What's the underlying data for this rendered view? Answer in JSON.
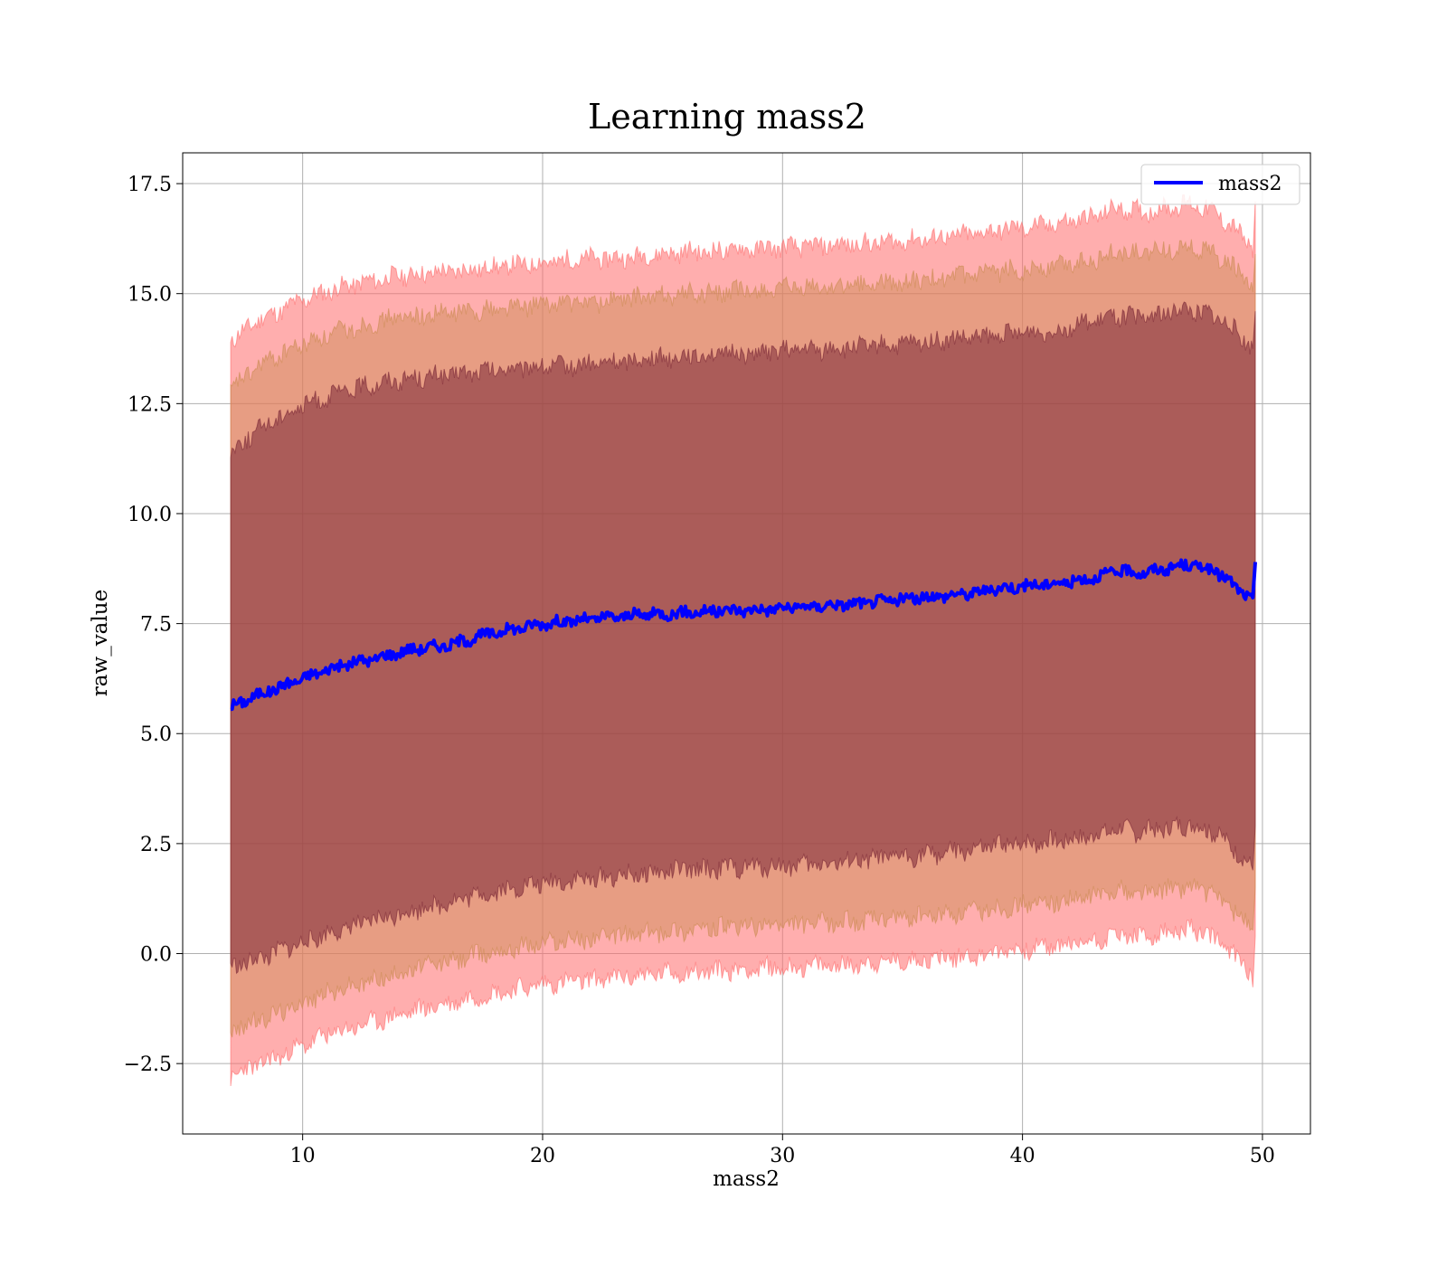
{
  "chart_data": {
    "type": "line",
    "title": "Learning mass2",
    "xlabel": "mass2",
    "ylabel": "raw_value",
    "xlim": [
      5,
      52
    ],
    "ylim": [
      -4.1,
      18.2
    ],
    "xticks": [
      10,
      20,
      30,
      40,
      50
    ],
    "xtick_labels": [
      "10",
      "20",
      "30",
      "40",
      "50"
    ],
    "yticks": [
      -2.5,
      0.0,
      2.5,
      5.0,
      7.5,
      10.0,
      12.5,
      15.0,
      17.5
    ],
    "ytick_labels": [
      "−2.5",
      "0.0",
      "2.5",
      "5.0",
      "7.5",
      "10.0",
      "12.5",
      "15.0",
      "17.5"
    ],
    "grid": true,
    "legend": {
      "position": "top-right",
      "entries": [
        {
          "label": "mass2",
          "color": "#0000ff"
        }
      ]
    },
    "x": [
      7.0,
      8.0,
      9.0,
      10.0,
      11.0,
      12.0,
      13.0,
      14.0,
      15.0,
      16.0,
      17.0,
      18.0,
      19.0,
      20.0,
      21.0,
      22.0,
      23.0,
      24.0,
      25.0,
      26.0,
      27.0,
      28.0,
      29.0,
      30.0,
      31.0,
      32.0,
      33.0,
      34.0,
      35.0,
      36.0,
      37.0,
      38.0,
      39.0,
      40.0,
      41.0,
      42.0,
      43.0,
      44.0,
      45.0,
      46.0,
      47.0,
      48.0,
      49.0,
      49.6,
      49.7
    ],
    "series": [
      {
        "name": "mass2",
        "color": "#0000ff",
        "values": [
          5.6,
          5.85,
          6.05,
          6.25,
          6.45,
          6.6,
          6.7,
          6.85,
          6.95,
          7.0,
          7.15,
          7.3,
          7.4,
          7.5,
          7.55,
          7.6,
          7.65,
          7.7,
          7.72,
          7.75,
          7.78,
          7.8,
          7.82,
          7.85,
          7.88,
          7.92,
          7.95,
          8.0,
          8.05,
          8.1,
          8.15,
          8.2,
          8.3,
          8.35,
          8.4,
          8.45,
          8.55,
          8.7,
          8.65,
          8.75,
          8.85,
          8.7,
          8.3,
          8.0,
          8.9
        ]
      }
    ],
    "bands": [
      {
        "sigma": 1,
        "color": "#7a2636",
        "upper": [
          11.4,
          11.85,
          12.2,
          12.45,
          12.65,
          12.8,
          12.95,
          13.05,
          13.1,
          13.15,
          13.2,
          13.25,
          13.3,
          13.35,
          13.35,
          13.4,
          13.45,
          13.5,
          13.55,
          13.6,
          13.6,
          13.65,
          13.65,
          13.7,
          13.72,
          13.75,
          13.78,
          13.82,
          13.85,
          13.9,
          13.95,
          14.0,
          14.05,
          14.1,
          14.15,
          14.25,
          14.35,
          14.5,
          14.45,
          14.55,
          14.65,
          14.5,
          14.1,
          13.7,
          14.6
        ],
        "lower": [
          -0.3,
          -0.15,
          0.05,
          0.25,
          0.45,
          0.6,
          0.75,
          0.9,
          1.05,
          1.15,
          1.3,
          1.4,
          1.5,
          1.6,
          1.65,
          1.7,
          1.75,
          1.8,
          1.85,
          1.9,
          1.92,
          1.95,
          1.97,
          2.0,
          2.02,
          2.05,
          2.1,
          2.15,
          2.2,
          2.25,
          2.3,
          2.35,
          2.45,
          2.5,
          2.55,
          2.6,
          2.7,
          2.85,
          2.75,
          2.85,
          2.95,
          2.75,
          2.3,
          1.9,
          2.9
        ]
      },
      {
        "sigma": 2,
        "color": "#c98a50",
        "upper": [
          12.8,
          13.3,
          13.6,
          13.85,
          14.05,
          14.2,
          14.35,
          14.45,
          14.5,
          14.55,
          14.6,
          14.65,
          14.7,
          14.75,
          14.8,
          14.8,
          14.85,
          14.9,
          14.95,
          15.0,
          15.0,
          15.05,
          15.05,
          15.1,
          15.12,
          15.15,
          15.18,
          15.22,
          15.25,
          15.3,
          15.35,
          15.4,
          15.5,
          15.55,
          15.6,
          15.7,
          15.8,
          15.95,
          15.9,
          16.0,
          16.1,
          15.9,
          15.5,
          15.1,
          15.9
        ],
        "lower": [
          -1.75,
          -1.55,
          -1.35,
          -1.1,
          -0.9,
          -0.75,
          -0.6,
          -0.45,
          -0.3,
          -0.2,
          -0.05,
          0.05,
          0.15,
          0.25,
          0.3,
          0.35,
          0.4,
          0.45,
          0.5,
          0.55,
          0.57,
          0.6,
          0.62,
          0.65,
          0.67,
          0.7,
          0.73,
          0.77,
          0.8,
          0.85,
          0.9,
          0.95,
          1.05,
          1.1,
          1.15,
          1.2,
          1.3,
          1.45,
          1.35,
          1.45,
          1.55,
          1.35,
          0.9,
          0.5,
          1.5
        ]
      },
      {
        "sigma": 3,
        "color": "#ff6b6b",
        "upper": [
          13.9,
          14.35,
          14.6,
          14.85,
          15.05,
          15.2,
          15.3,
          15.4,
          15.45,
          15.5,
          15.55,
          15.6,
          15.65,
          15.7,
          15.75,
          15.8,
          15.8,
          15.85,
          15.9,
          15.95,
          15.95,
          16.0,
          16.02,
          16.05,
          16.07,
          16.1,
          16.12,
          16.15,
          16.2,
          16.25,
          16.3,
          16.35,
          16.45,
          16.5,
          16.55,
          16.65,
          16.75,
          16.95,
          16.85,
          16.95,
          17.05,
          16.85,
          16.4,
          16.0,
          17.1
        ],
        "lower": [
          -2.8,
          -2.55,
          -2.35,
          -2.1,
          -1.85,
          -1.7,
          -1.55,
          -1.4,
          -1.25,
          -1.15,
          -1.0,
          -0.9,
          -0.8,
          -0.7,
          -0.65,
          -0.6,
          -0.55,
          -0.5,
          -0.45,
          -0.42,
          -0.4,
          -0.37,
          -0.35,
          -0.32,
          -0.3,
          -0.27,
          -0.24,
          -0.2,
          -0.17,
          -0.12,
          -0.08,
          -0.04,
          0.05,
          0.1,
          0.15,
          0.2,
          0.3,
          0.45,
          0.35,
          0.45,
          0.55,
          0.35,
          -0.1,
          -0.5,
          0.4
        ]
      }
    ]
  }
}
